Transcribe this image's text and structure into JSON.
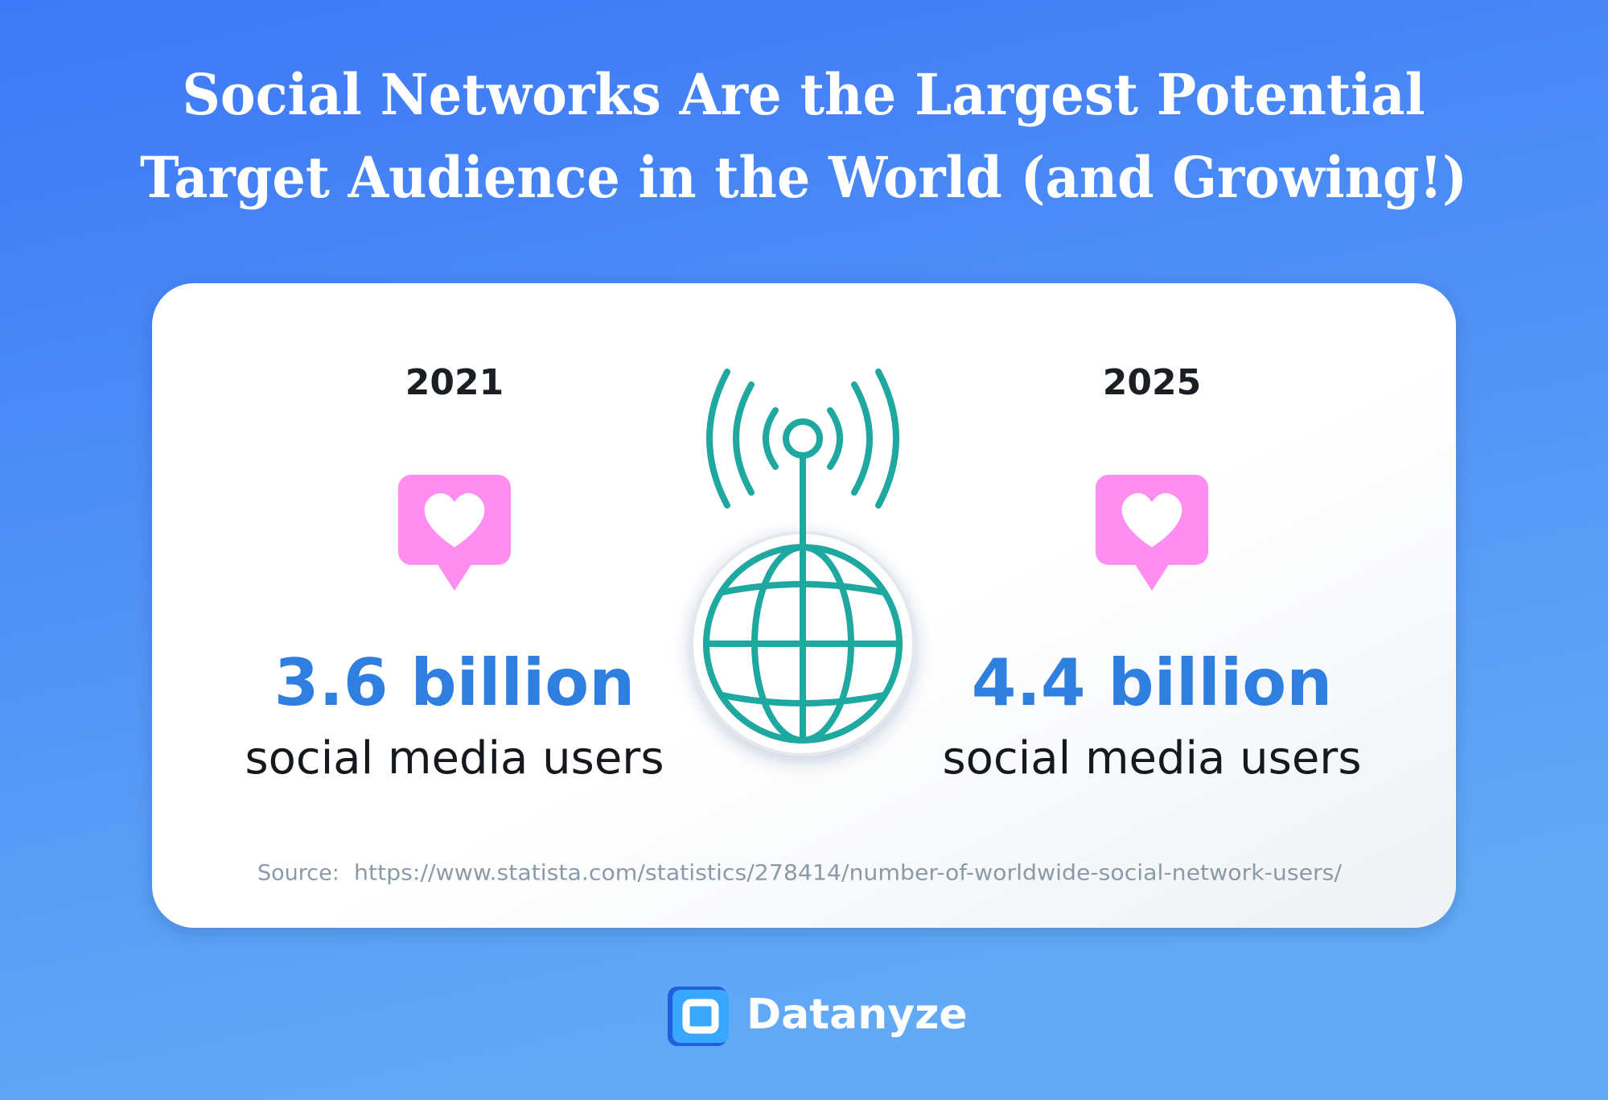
{
  "title": {
    "lines": [
      "Social Networks Are the Largest Potential",
      "Target Audience in the World (and Growing!)"
    ]
  },
  "stats": [
    {
      "year": "2021",
      "amount": "3.6 billion",
      "label": "social media users"
    },
    {
      "year": "2025",
      "amount": "4.4 billion",
      "label": "social media users"
    }
  ],
  "source": {
    "label": "Source:",
    "url": "https://www.statista.com/statistics/278414/number-of-worldwide-social-network-users/"
  },
  "brand": "Datanyze"
}
